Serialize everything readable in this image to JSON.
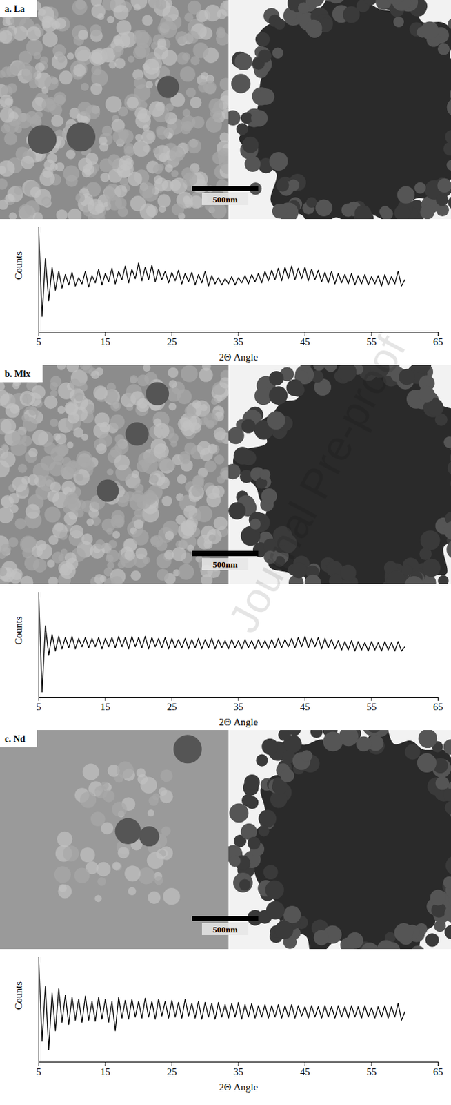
{
  "chart_data": [
    {
      "type": "line",
      "title": "a. La",
      "xlabel": "2Θ Angle",
      "ylabel": "Counts",
      "annotations": [
        "500nm"
      ],
      "color": "#000000",
      "tick_labels": "x",
      "xlim": [
        5,
        65
      ],
      "xticks": [
        5,
        15,
        25,
        35,
        45,
        55,
        65
      ],
      "ylim": [
        0,
        100
      ],
      "x": [
        5,
        5.5,
        6,
        6.5,
        7,
        7.5,
        8,
        8.5,
        9,
        9.5,
        10,
        10.5,
        11,
        11.5,
        12,
        12.5,
        13,
        13.5,
        14,
        14.5,
        15,
        15.5,
        16,
        16.5,
        17,
        17.5,
        18,
        18.5,
        19,
        19.5,
        20,
        20.5,
        21,
        21.5,
        22,
        22.5,
        23,
        23.5,
        24,
        24.5,
        25,
        25.5,
        26,
        26.5,
        27,
        27.5,
        28,
        28.5,
        29,
        29.5,
        30,
        30.5,
        31,
        31.5,
        32,
        32.5,
        33,
        33.5,
        34,
        34.5,
        35,
        35.5,
        36,
        36.5,
        37,
        37.5,
        38,
        38.5,
        39,
        39.5,
        40,
        40.5,
        41,
        41.5,
        42,
        42.5,
        43,
        43.5,
        44,
        44.5,
        45,
        45.5,
        46,
        46.5,
        47,
        47.5,
        48,
        48.5,
        49,
        49.5,
        50,
        50.5,
        51,
        51.5,
        52,
        52.5,
        53,
        53.5,
        54,
        54.5,
        55,
        55.5,
        56,
        56.5,
        57,
        57.5,
        58,
        58.5,
        59,
        59.5,
        60
      ],
      "values": [
        95,
        15,
        70,
        30,
        62,
        40,
        58,
        42,
        55,
        45,
        57,
        44,
        52,
        46,
        58,
        43,
        54,
        47,
        60,
        45,
        56,
        48,
        61,
        46,
        58,
        50,
        63,
        47,
        60,
        51,
        66,
        49,
        62,
        50,
        64,
        48,
        60,
        50,
        58,
        47,
        57,
        49,
        59,
        46,
        56,
        48,
        57,
        45,
        55,
        47,
        58,
        44,
        54,
        46,
        52,
        45,
        51,
        46,
        53,
        45,
        52,
        47,
        54,
        46,
        55,
        48,
        56,
        47,
        58,
        49,
        59,
        50,
        61,
        49,
        62,
        51,
        63,
        50,
        61,
        51,
        62,
        49,
        60,
        50,
        59,
        48,
        57,
        47,
        58,
        46,
        56,
        47,
        55,
        46,
        56,
        45,
        54,
        46,
        55,
        45,
        53,
        46,
        54,
        44,
        55,
        45,
        53,
        46,
        58,
        44,
        50
      ]
    },
    {
      "type": "line",
      "title": "b. Mix",
      "xlabel": "2Θ Angle",
      "ylabel": "Counts",
      "annotations": [
        "500nm"
      ],
      "color": "#000000",
      "tick_labels": "x",
      "xlim": [
        5,
        65
      ],
      "xticks": [
        5,
        15,
        25,
        35,
        45,
        55,
        65
      ],
      "ylim": [
        0,
        100
      ],
      "x": [
        5,
        5.5,
        6,
        6.5,
        7,
        7.5,
        8,
        8.5,
        9,
        9.5,
        10,
        10.5,
        11,
        11.5,
        12,
        12.5,
        13,
        13.5,
        14,
        14.5,
        15,
        15.5,
        16,
        16.5,
        17,
        17.5,
        18,
        18.5,
        19,
        19.5,
        20,
        20.5,
        21,
        21.5,
        22,
        22.5,
        23,
        23.5,
        24,
        24.5,
        25,
        25.5,
        26,
        26.5,
        27,
        27.5,
        28,
        28.5,
        29,
        29.5,
        30,
        30.5,
        31,
        31.5,
        32,
        32.5,
        33,
        33.5,
        34,
        34.5,
        35,
        35.5,
        36,
        36.5,
        37,
        37.5,
        38,
        38.5,
        39,
        39.5,
        40,
        40.5,
        41,
        41.5,
        42,
        42.5,
        43,
        43.5,
        44,
        44.5,
        45,
        45.5,
        46,
        46.5,
        47,
        47.5,
        48,
        48.5,
        49,
        49.5,
        50,
        50.5,
        51,
        51.5,
        52,
        52.5,
        53,
        53.5,
        54,
        54.5,
        55,
        55.5,
        56,
        56.5,
        57,
        57.5,
        58,
        58.5,
        59,
        59.5,
        60
      ],
      "values": [
        95,
        5,
        68,
        40,
        60,
        44,
        58,
        46,
        57,
        47,
        58,
        46,
        56,
        48,
        57,
        47,
        56,
        48,
        57,
        46,
        56,
        48,
        57,
        47,
        58,
        48,
        57,
        46,
        58,
        48,
        57,
        47,
        58,
        46,
        57,
        48,
        56,
        47,
        57,
        46,
        56,
        47,
        55,
        47,
        56,
        46,
        55,
        47,
        56,
        46,
        55,
        47,
        56,
        46,
        55,
        47,
        54,
        46,
        55,
        47,
        54,
        46,
        55,
        47,
        54,
        46,
        55,
        47,
        54,
        46,
        55,
        47,
        56,
        47,
        55,
        48,
        56,
        47,
        57,
        48,
        58,
        47,
        56,
        48,
        57,
        46,
        56,
        47,
        55,
        46,
        54,
        45,
        53,
        45,
        54,
        44,
        53,
        45,
        52,
        44,
        53,
        45,
        52,
        44,
        53,
        45,
        52,
        44,
        53,
        44,
        48
      ]
    },
    {
      "type": "line",
      "title": "c. Nd",
      "xlabel": "2Θ Angle",
      "ylabel": "Counts",
      "annotations": [
        "500nm"
      ],
      "color": "#000000",
      "tick_labels": "x",
      "xlim": [
        5,
        65
      ],
      "xticks": [
        5,
        15,
        25,
        35,
        45,
        55,
        65
      ],
      "ylim": [
        0,
        100
      ],
      "x": [
        5,
        5.5,
        6,
        6.5,
        7,
        7.5,
        8,
        8.5,
        9,
        9.5,
        10,
        10.5,
        11,
        11.5,
        12,
        12.5,
        13,
        13.5,
        14,
        14.5,
        15,
        15.5,
        16,
        16.5,
        17,
        17.5,
        18,
        18.5,
        19,
        19.5,
        20,
        20.5,
        21,
        21.5,
        22,
        22.5,
        23,
        23.5,
        24,
        24.5,
        25,
        25.5,
        26,
        26.5,
        27,
        27.5,
        28,
        28.5,
        29,
        29.5,
        30,
        30.5,
        31,
        31.5,
        32,
        32.5,
        33,
        33.5,
        34,
        34.5,
        35,
        35.5,
        36,
        36.5,
        37,
        37.5,
        38,
        38.5,
        39,
        39.5,
        40,
        40.5,
        41,
        41.5,
        42,
        42.5,
        43,
        43.5,
        44,
        44.5,
        45,
        45.5,
        46,
        46.5,
        47,
        47.5,
        48,
        48.5,
        49,
        49.5,
        50,
        50.5,
        51,
        51.5,
        52,
        52.5,
        53,
        53.5,
        54,
        54.5,
        55,
        55.5,
        56,
        56.5,
        57,
        57.5,
        58,
        58.5,
        59,
        59.5,
        60
      ],
      "values": [
        95,
        20,
        72,
        12,
        66,
        30,
        70,
        38,
        64,
        36,
        62,
        40,
        60,
        38,
        63,
        40,
        58,
        39,
        62,
        41,
        60,
        38,
        58,
        30,
        62,
        42,
        59,
        41,
        60,
        43,
        58,
        42,
        61,
        43,
        58,
        41,
        60,
        44,
        58,
        42,
        59,
        43,
        57,
        42,
        60,
        44,
        56,
        42,
        58,
        41,
        57,
        43,
        56,
        41,
        57,
        43,
        55,
        42,
        56,
        43,
        57,
        41,
        55,
        43,
        56,
        42,
        54,
        43,
        55,
        42,
        54,
        43,
        55,
        42,
        54,
        43,
        55,
        42,
        54,
        44,
        53,
        42,
        54,
        43,
        53,
        42,
        54,
        43,
        53,
        42,
        54,
        43,
        53,
        42,
        54,
        43,
        53,
        42,
        54,
        43,
        52,
        42,
        53,
        43,
        54,
        42,
        53,
        43,
        56,
        40,
        48
      ]
    }
  ],
  "watermark": "Journal Pre-proof"
}
